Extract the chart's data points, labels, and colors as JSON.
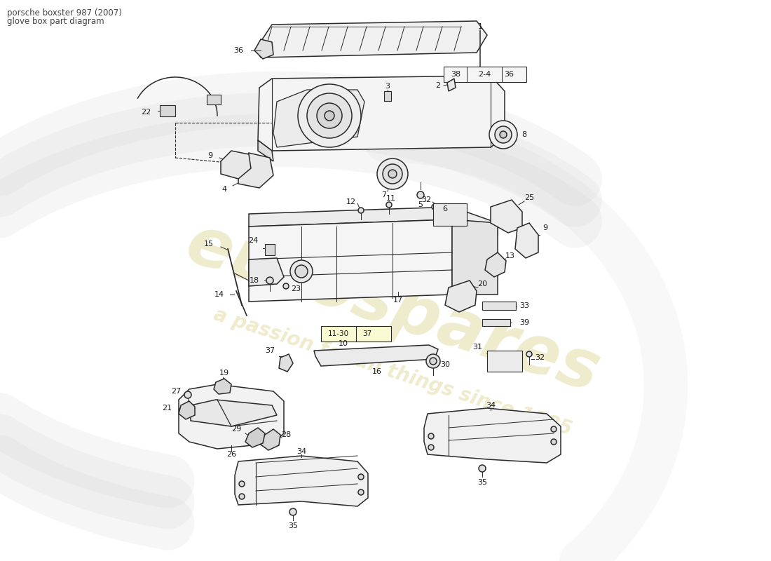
{
  "bg_color": "#ffffff",
  "line_color": "#2a2a2a",
  "label_color": "#1a1a1a",
  "wm_color1": "#c8b84a",
  "wm_color2": "#c8b84a",
  "title_line1": "porsche boxster 987 (2007)",
  "title_line2": "glove box part diagram"
}
